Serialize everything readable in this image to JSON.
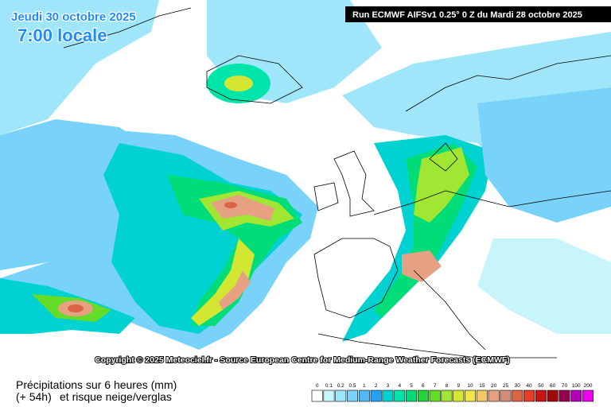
{
  "header": {
    "date": "Jeudi 30 octobre 2025",
    "time": "7:00 locale",
    "run": "Run ECMWF AIFSv1 0.25° 0 Z du Mardi 28 octobre 2025"
  },
  "copyright": "Copyright © 2025 Meteociel.fr - Source European Centre for Medium-Range Weather Forecasts (ECMWF)",
  "footer": {
    "title": "Précipitations sur 6 heures (mm)",
    "lead": "(+ 54h)",
    "subtitle": "et risque neige/verglas"
  },
  "legend": {
    "labels": [
      0,
      0.1,
      0.2,
      0.5,
      1,
      2,
      3,
      4,
      5,
      6,
      7,
      8,
      9,
      10,
      15,
      20,
      25,
      30,
      40,
      50,
      60,
      70,
      100,
      200
    ],
    "colors": [
      "#ffffff",
      "#c8f5fa",
      "#a0e6fa",
      "#78d2fa",
      "#50b9f5",
      "#28a0f0",
      "#00d2d2",
      "#00e6aa",
      "#00dc78",
      "#28d23c",
      "#64dc28",
      "#a0e632",
      "#d2e632",
      "#f0e646",
      "#f0c864",
      "#e6a082",
      "#d28c78",
      "#dc6446",
      "#e63c28",
      "#c81414",
      "#a00a0a",
      "#960050",
      "#b400b4",
      "#f000f0"
    ]
  }
}
